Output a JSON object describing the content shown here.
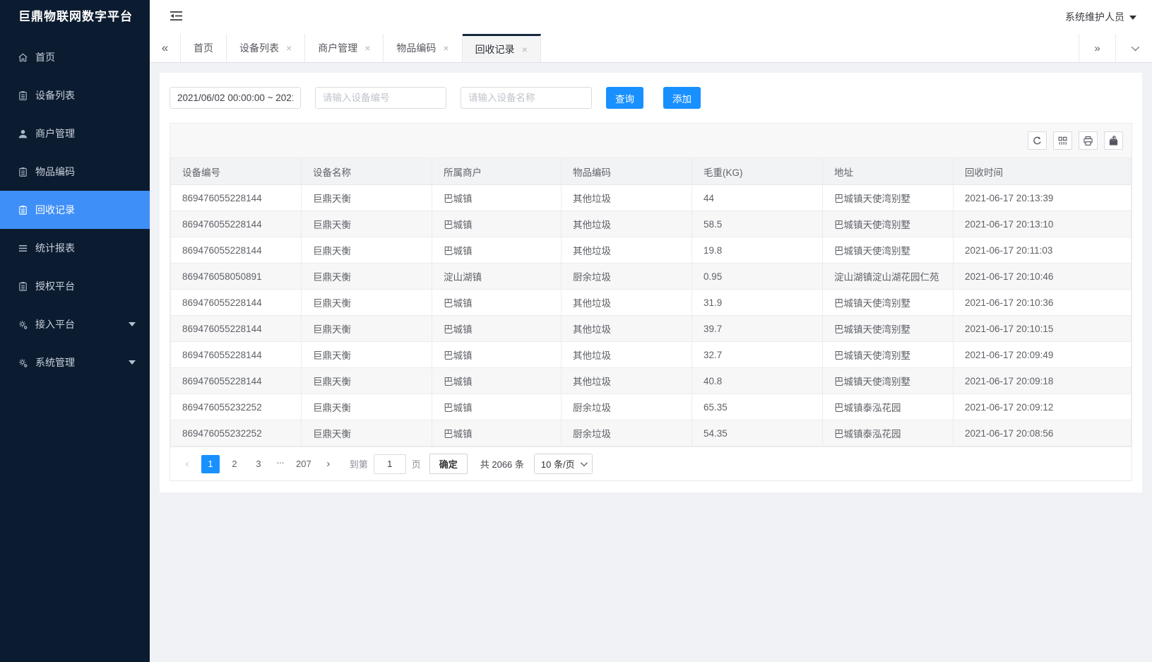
{
  "app": {
    "title": "巨鼎物联网数字平台",
    "user": "系统维护人员"
  },
  "colors": {
    "accent": "#1890ff",
    "sidebar_active": "#3f8ff8",
    "sidebar_bg": "#0c1c30"
  },
  "sidebar": {
    "items": [
      {
        "key": "home",
        "label": "首页",
        "icon": "home-icon",
        "active": false,
        "caret": false
      },
      {
        "key": "device-list",
        "label": "设备列表",
        "icon": "clipboard-icon",
        "active": false,
        "caret": false
      },
      {
        "key": "merchant-mgmt",
        "label": "商户管理",
        "icon": "user-icon",
        "active": false,
        "caret": false
      },
      {
        "key": "item-code",
        "label": "物品编码",
        "icon": "clipboard-icon",
        "active": false,
        "caret": false
      },
      {
        "key": "recycle-records",
        "label": "回收记录",
        "icon": "clipboard-icon",
        "active": true,
        "caret": false
      },
      {
        "key": "stats-report",
        "label": "统计报表",
        "icon": "list-icon",
        "active": false,
        "caret": false
      },
      {
        "key": "auth-platform",
        "label": "授权平台",
        "icon": "clipboard-icon",
        "active": false,
        "caret": false
      },
      {
        "key": "access-platform",
        "label": "接入平台",
        "icon": "gear-icon",
        "active": false,
        "caret": true
      },
      {
        "key": "system-mgmt",
        "label": "系统管理",
        "icon": "gear-icon",
        "active": false,
        "caret": true
      }
    ]
  },
  "tabs": {
    "items": [
      {
        "key": "home",
        "label": "首页",
        "closable": false,
        "active": false
      },
      {
        "key": "device-list",
        "label": "设备列表",
        "closable": true,
        "active": false
      },
      {
        "key": "merchant-mgmt",
        "label": "商户管理",
        "closable": true,
        "active": false
      },
      {
        "key": "item-code",
        "label": "物品编码",
        "closable": true,
        "active": false
      },
      {
        "key": "recycle-records",
        "label": "回收记录",
        "closable": true,
        "active": true
      }
    ]
  },
  "filters": {
    "date_range_value": "2021/06/02 00:00:00 ~ 2021/",
    "device_no_placeholder": "请输入设备编号",
    "device_name_placeholder": "请输入设备名称",
    "query_label": "查询",
    "add_label": "添加"
  },
  "toolbar": {
    "icons": [
      "refresh-icon",
      "columns-icon",
      "print-icon",
      "export-icon"
    ]
  },
  "table": {
    "columns": [
      "设备编号",
      "设备名称",
      "所属商户",
      "物品编码",
      "毛重(KG)",
      "地址",
      "回收时间"
    ],
    "rows": [
      [
        "869476055228144",
        "巨鼎天衡",
        "巴城镇",
        "其他垃圾",
        "44",
        "巴城镇天使湾别墅",
        "2021-06-17 20:13:39"
      ],
      [
        "869476055228144",
        "巨鼎天衡",
        "巴城镇",
        "其他垃圾",
        "58.5",
        "巴城镇天使湾别墅",
        "2021-06-17 20:13:10"
      ],
      [
        "869476055228144",
        "巨鼎天衡",
        "巴城镇",
        "其他垃圾",
        "19.8",
        "巴城镇天使湾别墅",
        "2021-06-17 20:11:03"
      ],
      [
        "869476058050891",
        "巨鼎天衡",
        "淀山湖镇",
        "厨余垃圾",
        "0.95",
        "淀山湖镇淀山湖花园仁苑",
        "2021-06-17 20:10:46"
      ],
      [
        "869476055228144",
        "巨鼎天衡",
        "巴城镇",
        "其他垃圾",
        "31.9",
        "巴城镇天使湾别墅",
        "2021-06-17 20:10:36"
      ],
      [
        "869476055228144",
        "巨鼎天衡",
        "巴城镇",
        "其他垃圾",
        "39.7",
        "巴城镇天使湾别墅",
        "2021-06-17 20:10:15"
      ],
      [
        "869476055228144",
        "巨鼎天衡",
        "巴城镇",
        "其他垃圾",
        "32.7",
        "巴城镇天使湾别墅",
        "2021-06-17 20:09:49"
      ],
      [
        "869476055228144",
        "巨鼎天衡",
        "巴城镇",
        "其他垃圾",
        "40.8",
        "巴城镇天使湾别墅",
        "2021-06-17 20:09:18"
      ],
      [
        "869476055232252",
        "巨鼎天衡",
        "巴城镇",
        "厨余垃圾",
        "65.35",
        "巴城镇泰泓花园",
        "2021-06-17 20:09:12"
      ],
      [
        "869476055232252",
        "巨鼎天衡",
        "巴城镇",
        "厨余垃圾",
        "54.35",
        "巴城镇泰泓花园",
        "2021-06-17 20:08:56"
      ]
    ]
  },
  "pagination": {
    "pages": [
      "1",
      "2",
      "3",
      "...",
      "207"
    ],
    "active_page": "1",
    "prev_symbol": "‹",
    "next_symbol": "›",
    "goto_label": "到第",
    "goto_value": "1",
    "page_label": "页",
    "confirm_label": "确定",
    "total_label": "共 2066 条",
    "page_size": "10 条/页"
  }
}
